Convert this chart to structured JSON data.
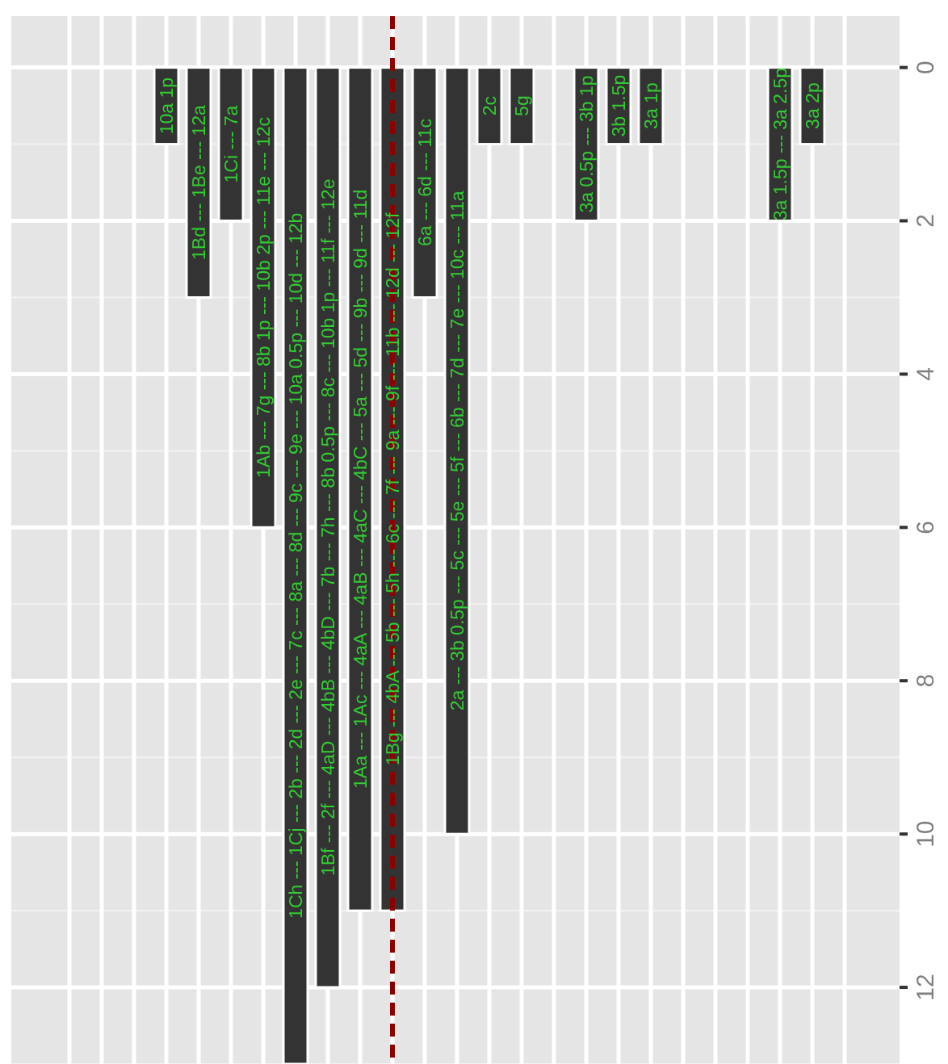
{
  "chart_data": {
    "type": "bar",
    "categories": [
      null,
      null,
      null,
      "10a 1p",
      "1Bd --- 1Be --- 12a",
      "1Ci --- 7a",
      "1Ab --- 7g --- 8b 1p --- 10b 2p --- 11e --- 12c",
      "1Ch --- 1Cj --- 2b --- 2d --- 2e --- 7c --- 8a --- 8d --- 9c --- 9e --- 10a 0.5p --- 10d --- 12b",
      "1Bf --- 2f --- 4aD --- 4bB --- 4bD --- 7b --- 7h --- 8b 0.5p --- 8c --- 10b 1p --- 11f --- 12e",
      "1Aa --- 1Ac --- 4aA --- 4aB --- 4aC --- 4bC --- 5a --- 5d --- 9b --- 9d --- 11d",
      "1Bg --- 4bA --- 5b --- 5h --- 6c --- 7f --- 9a --- 9f --- 11b --- 12d --- 12f",
      "6a --- 6d --- 11c",
      "2a --- 3b 0.5p --- 5c --- 5e --- 5f --- 6b --- 7d --- 7e --- 10c --- 11a",
      "2c",
      "5g",
      null,
      "3a 0.5p --- 3b 1p",
      "3b 1.5p",
      "3a 1p",
      null,
      null,
      null,
      "3a 1.5p --- 3a 2.5p",
      "3a 2p",
      null
    ],
    "values": [
      0,
      0,
      0,
      1,
      3,
      2,
      6,
      13,
      12,
      11,
      11,
      3,
      10,
      1,
      1,
      0,
      2,
      1,
      1,
      0,
      0,
      0,
      2,
      1,
      0
    ],
    "color": "#333333",
    "ylim": [
      13,
      -0.67
    ],
    "yticks": [
      0,
      2,
      4,
      6,
      8,
      10,
      12
    ],
    "grid": true,
    "ref_lines": [
      {
        "axis": "x",
        "value": "1Bg --- 4bA --- 5b --- 5h --- 6c --- 7f --- 9a --- 9f --- 11b --- 12d --- 12f",
        "color": "#8b0000",
        "line_style": "dashed"
      }
    ]
  }
}
